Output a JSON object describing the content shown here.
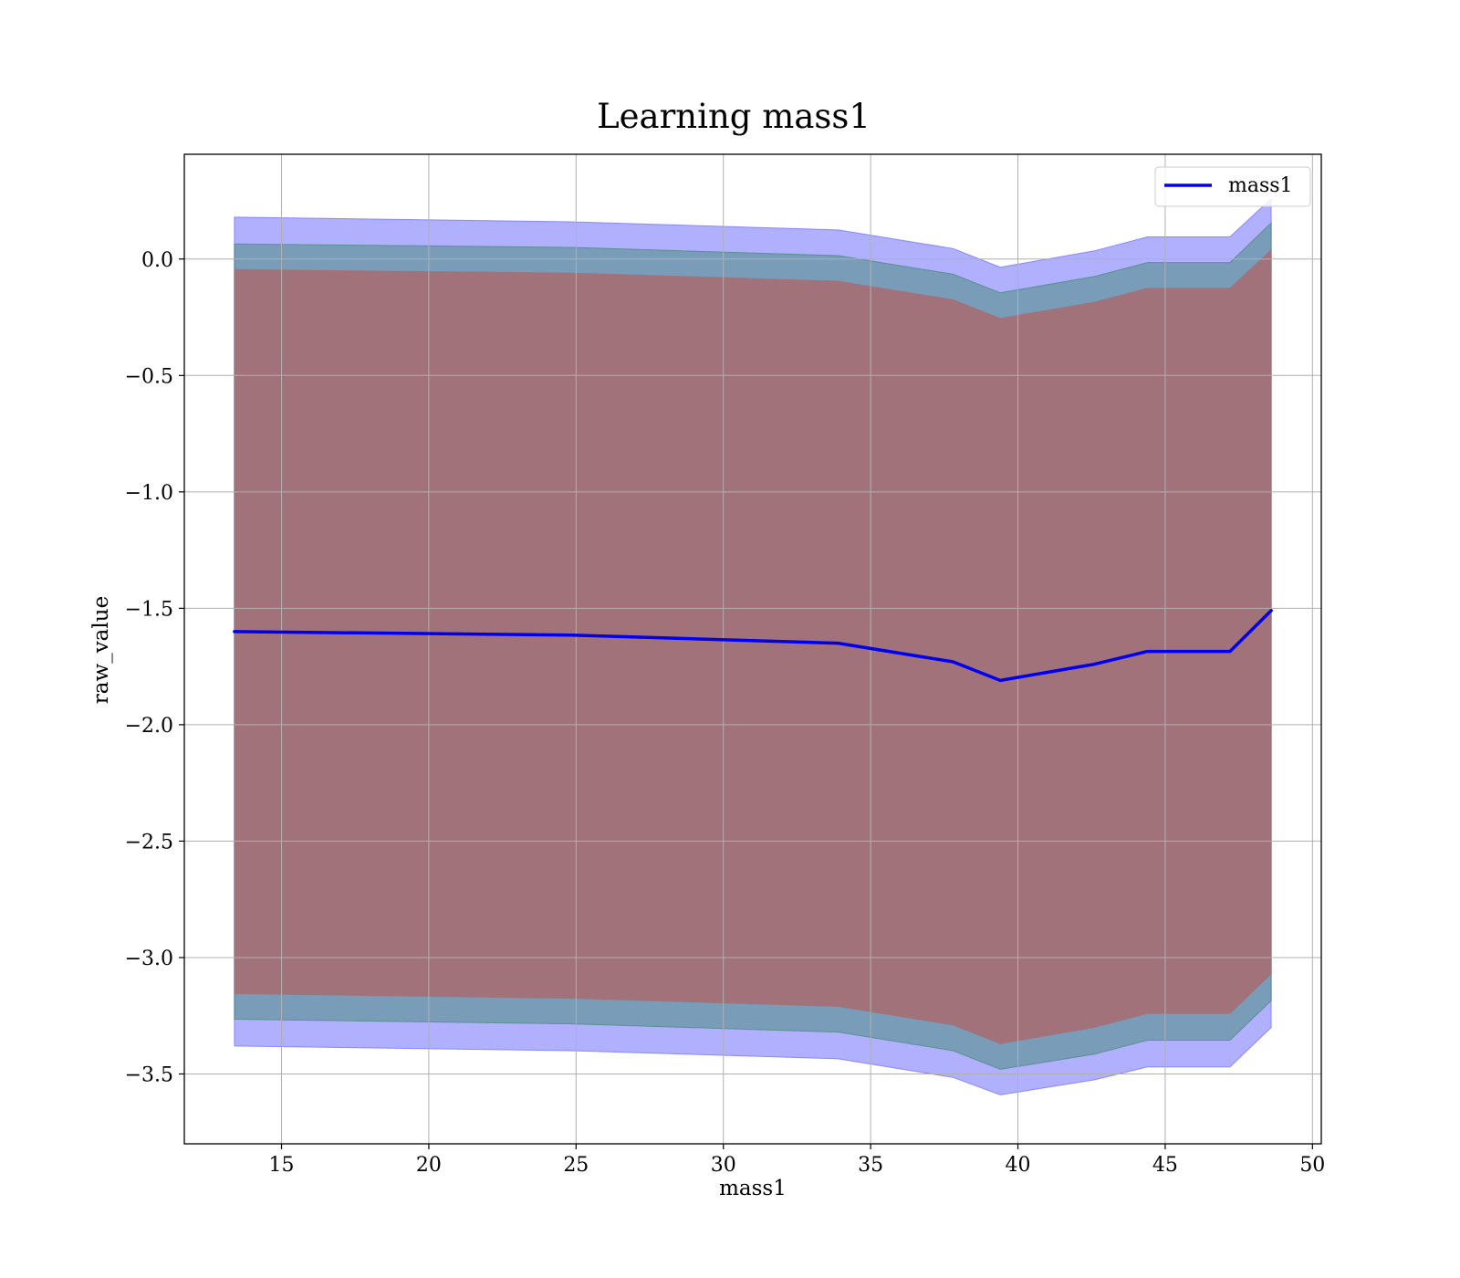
{
  "chart_data": {
    "type": "line",
    "title": "Learning mass1",
    "xlabel": "mass1",
    "ylabel": "raw_value",
    "xlim": [
      11.7,
      50.3
    ],
    "ylim": [
      -3.8,
      0.45
    ],
    "xticks": [
      15,
      20,
      25,
      30,
      35,
      40,
      45,
      50
    ],
    "xtick_labels": [
      "15",
      "20",
      "25",
      "30",
      "35",
      "40",
      "45",
      "50"
    ],
    "yticks": [
      0.0,
      -0.5,
      -1.0,
      -1.5,
      -2.0,
      -2.5,
      -3.0,
      -3.5
    ],
    "ytick_labels": [
      "0.0",
      "−0.5",
      "−1.0",
      "−1.5",
      "−2.0",
      "−2.5",
      "−3.0",
      "−3.5"
    ],
    "grid": true,
    "legend_position": "upper-right",
    "x": [
      13.4,
      24.8,
      33.9,
      37.8,
      39.4,
      42.6,
      44.4,
      47.2,
      48.6
    ],
    "series": [
      {
        "name": "mass1",
        "color": "#0000ee",
        "values": [
          -1.6,
          -1.615,
          -1.65,
          -1.73,
          -1.81,
          -1.74,
          -1.685,
          -1.685,
          -1.51
        ]
      }
    ],
    "bands": [
      {
        "role": "outer",
        "color": "#7777ff",
        "opacity": 0.58,
        "upper": [
          0.18,
          0.16,
          0.125,
          0.045,
          -0.035,
          0.035,
          0.095,
          0.095,
          0.26
        ],
        "lower": [
          -3.38,
          -3.4,
          -3.435,
          -3.515,
          -3.59,
          -3.525,
          -3.47,
          -3.47,
          -3.3
        ]
      },
      {
        "role": "middle",
        "color": "#4d8c80",
        "opacity": 0.55,
        "upper": [
          0.065,
          0.05,
          0.015,
          -0.065,
          -0.145,
          -0.075,
          -0.015,
          -0.015,
          0.155
        ],
        "lower": [
          -3.265,
          -3.285,
          -3.32,
          -3.4,
          -3.48,
          -3.415,
          -3.355,
          -3.355,
          -3.185
        ]
      },
      {
        "role": "inner",
        "color": "#a1727a",
        "opacity": 1.0,
        "upper": [
          -0.045,
          -0.06,
          -0.095,
          -0.175,
          -0.255,
          -0.185,
          -0.125,
          -0.125,
          0.04
        ],
        "lower": [
          -3.155,
          -3.175,
          -3.21,
          -3.29,
          -3.37,
          -3.3,
          -3.24,
          -3.24,
          -3.07
        ]
      }
    ]
  }
}
